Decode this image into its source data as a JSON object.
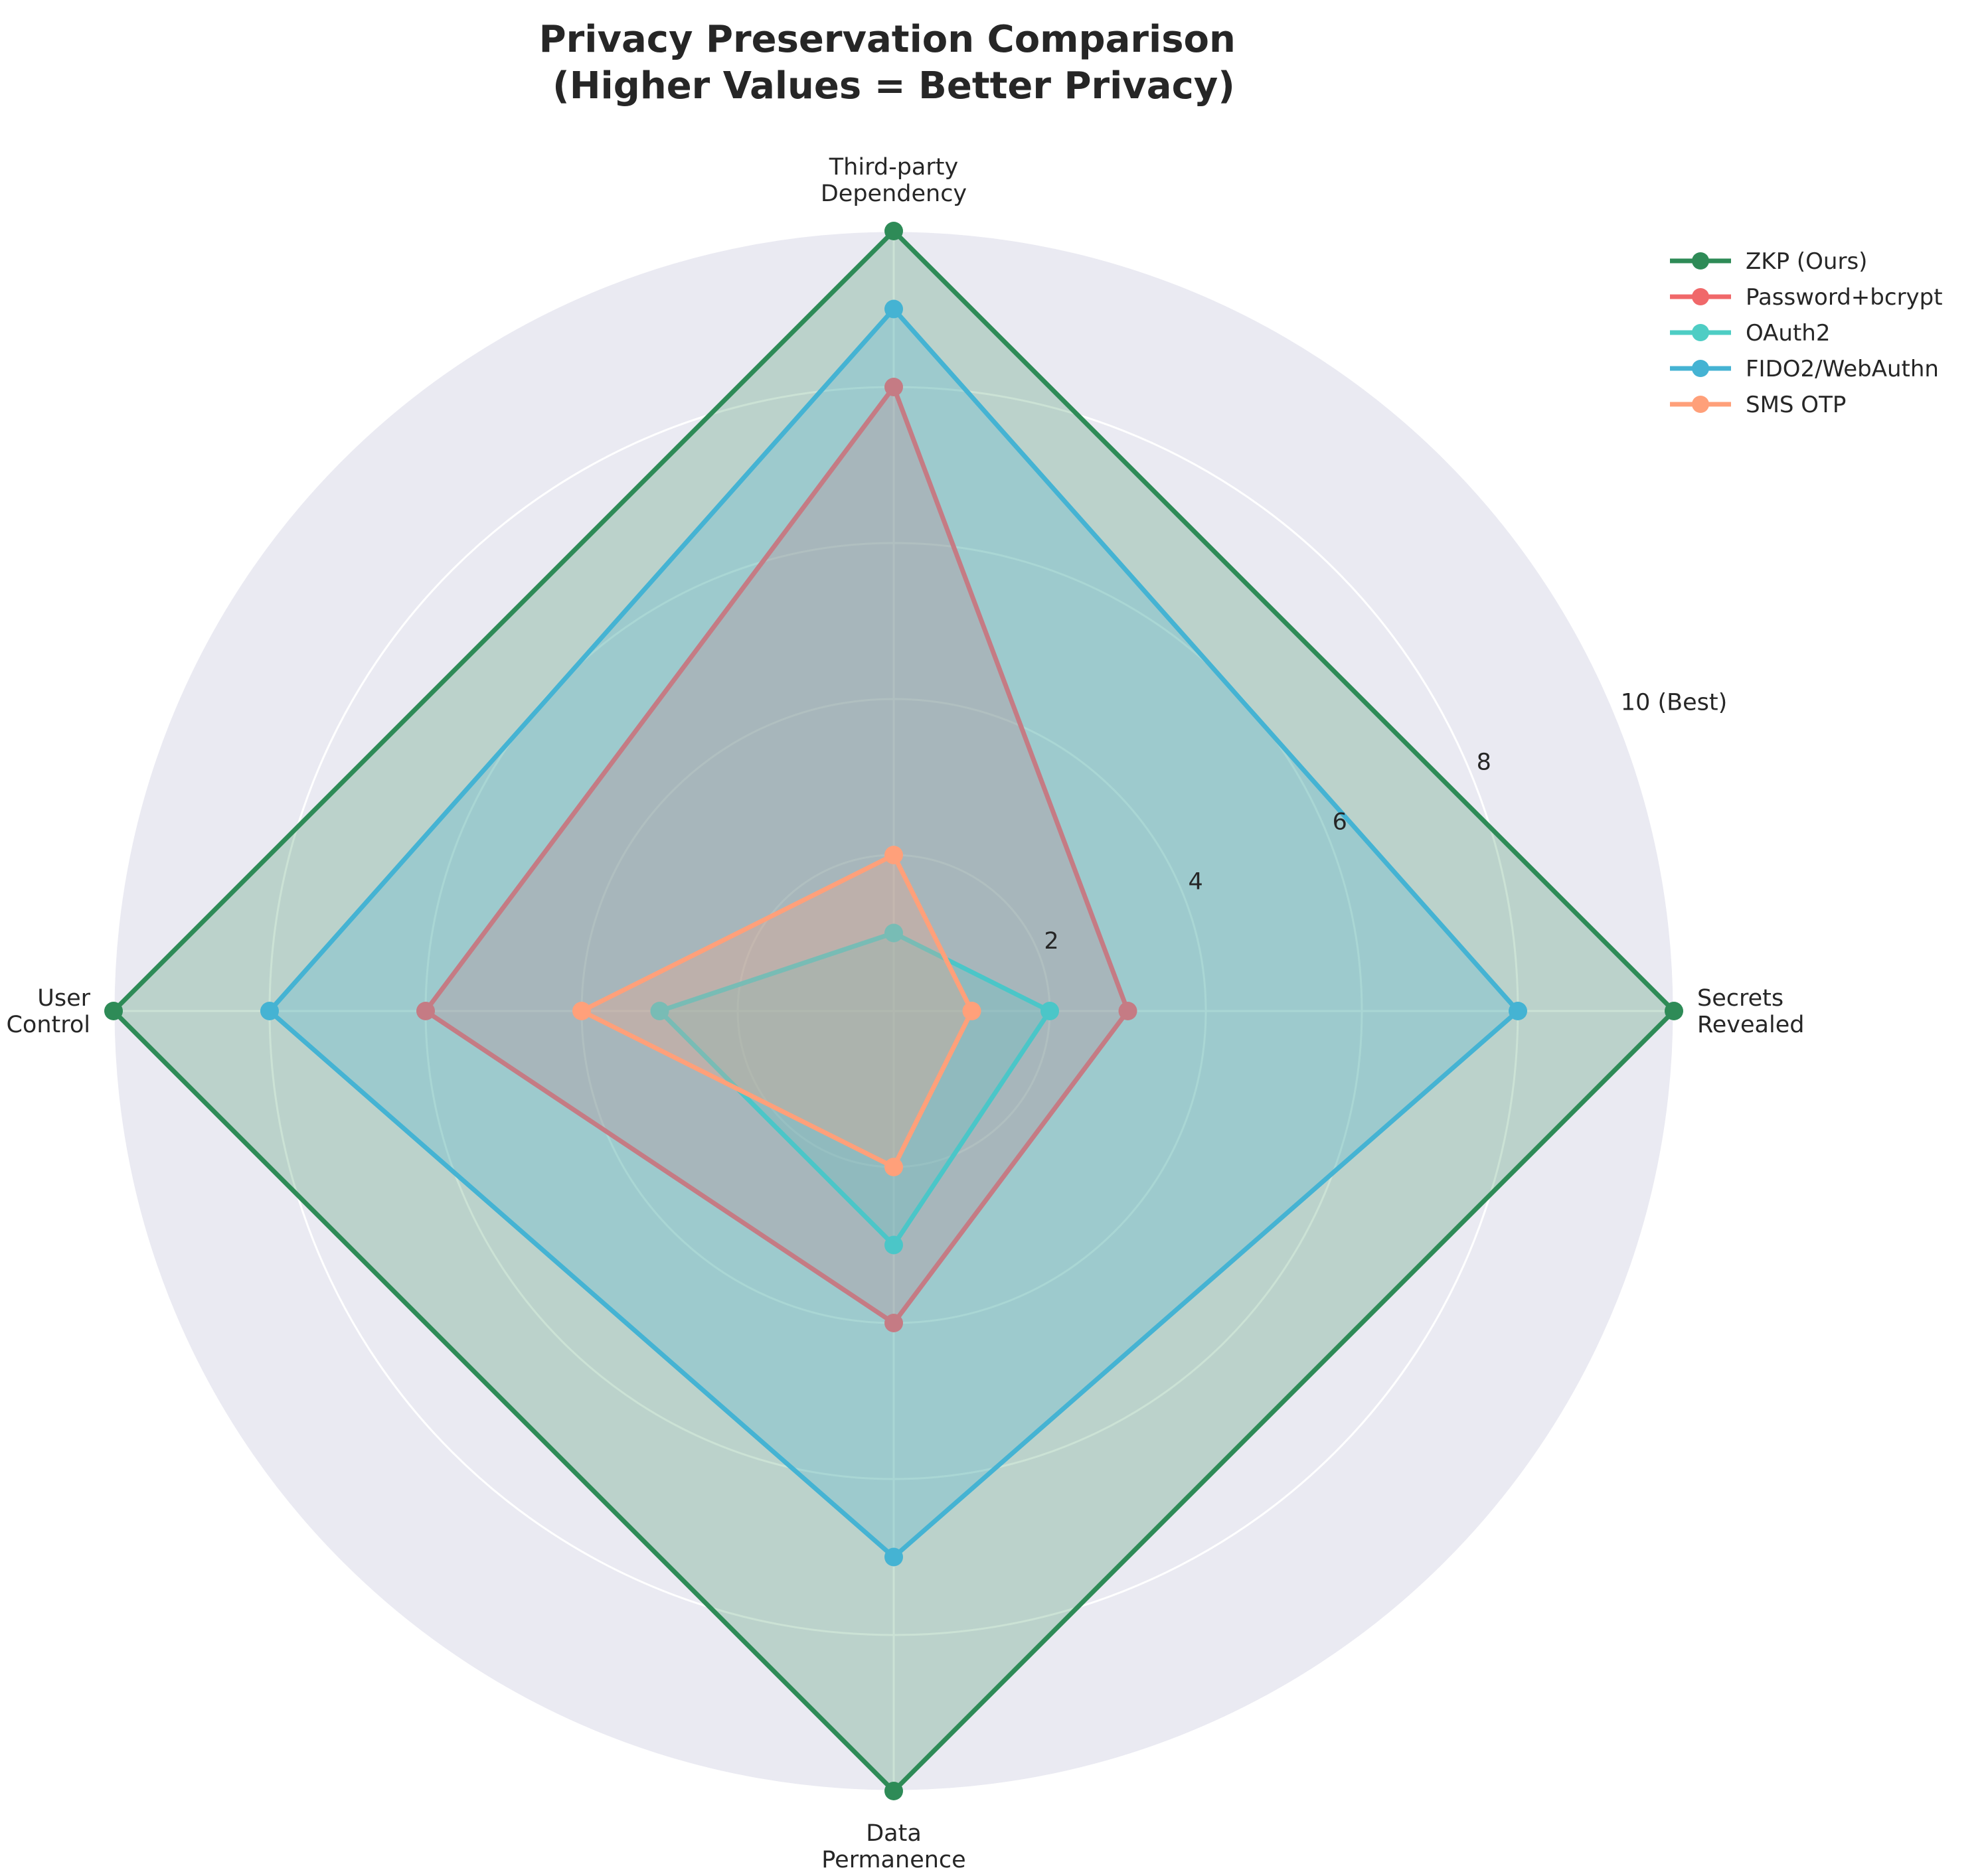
{
  "chart_data": {
    "type": "radar",
    "title_lines": [
      "Privacy Preservation Comparison",
      "(Higher Values = Better Privacy)"
    ],
    "axes": [
      {
        "lines": [
          "Secrets",
          "Revealed"
        ]
      },
      {
        "lines": [
          "Third-party",
          "Dependency"
        ]
      },
      {
        "lines": [
          "User",
          "Control"
        ]
      },
      {
        "lines": [
          "Data",
          "Permanence"
        ]
      }
    ],
    "rlim": [
      0,
      10
    ],
    "r_ticks": [
      {
        "value": 2,
        "label": "2"
      },
      {
        "value": 4,
        "label": "4"
      },
      {
        "value": 6,
        "label": "6"
      },
      {
        "value": 8,
        "label": "8"
      },
      {
        "value": 10,
        "label": "10 (Best)"
      }
    ],
    "grid": true,
    "legend_position": "top-right",
    "series": [
      {
        "name": "ZKP (Ours)",
        "color": "#2e8b57",
        "values": [
          10,
          10,
          10,
          10
        ]
      },
      {
        "name": "Password+bcrypt",
        "color": "#f0686a",
        "values": [
          3,
          8,
          6,
          4
        ]
      },
      {
        "name": "OAuth2",
        "color": "#4ecdc4",
        "values": [
          2,
          1,
          3,
          3
        ]
      },
      {
        "name": "FIDO2/WebAuthn",
        "color": "#45b3d3",
        "values": [
          8,
          9,
          8,
          7
        ]
      },
      {
        "name": "SMS OTP",
        "color": "#ffa07a",
        "values": [
          1,
          2,
          4,
          2
        ]
      }
    ]
  }
}
